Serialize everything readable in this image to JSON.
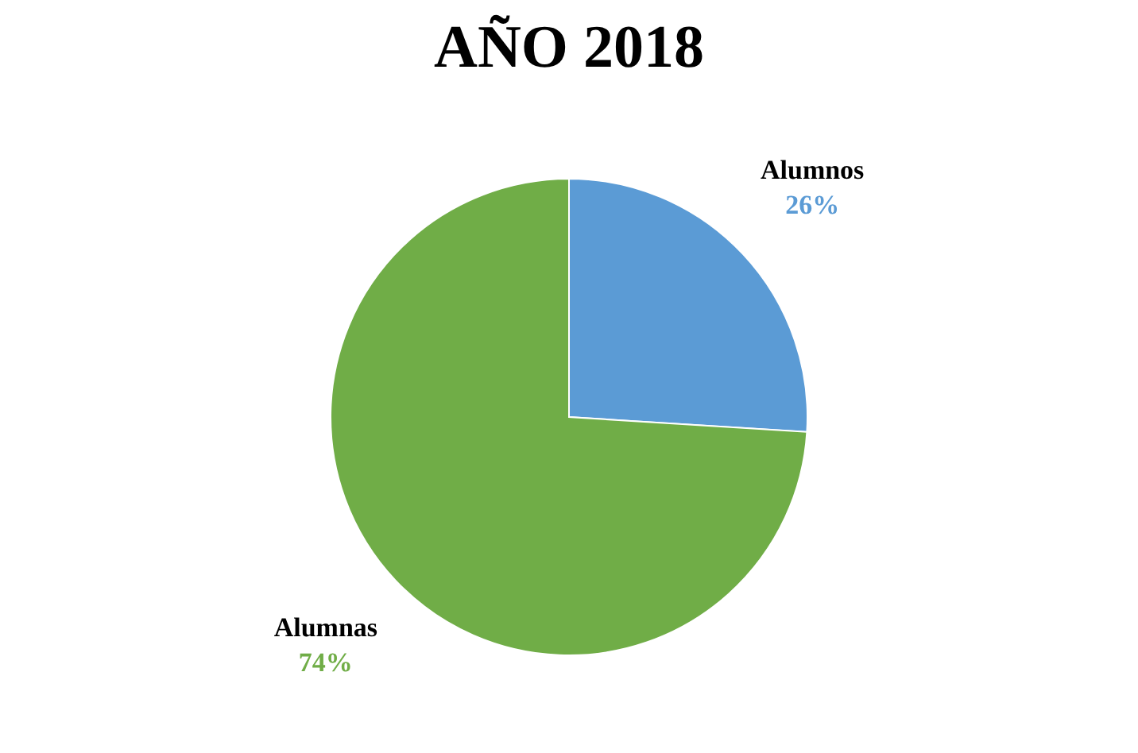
{
  "chart_data": {
    "type": "pie",
    "title": "AÑO 2018",
    "categories": [
      "Alumnos",
      "Alumnas"
    ],
    "values": [
      26,
      74
    ],
    "value_labels": [
      "26%",
      "74%"
    ],
    "colors": [
      "#5b9bd5",
      "#70ad47"
    ],
    "legend": false
  }
}
